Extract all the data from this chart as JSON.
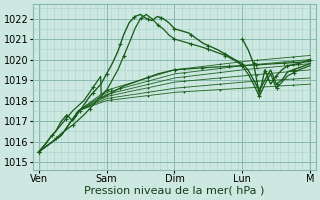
{
  "bg_color": "#cce8e0",
  "grid_major_color": "#88b8b0",
  "grid_minor_color": "#aad4cc",
  "line_color": "#1a5c1a",
  "ylabel_ticks": [
    1015,
    1016,
    1017,
    1018,
    1019,
    1020,
    1021,
    1022
  ],
  "ylim": [
    1014.6,
    1022.7
  ],
  "xlim": [
    0,
    100
  ],
  "xlabel": "Pression niveau de la mer( hPa )",
  "xlabel_fontsize": 8,
  "tick_fontsize": 7,
  "x_day_labels": [
    "Ven",
    "Sam",
    "Dim",
    "Lun",
    "M"
  ],
  "x_day_positions": [
    2,
    26,
    50,
    74,
    98
  ]
}
